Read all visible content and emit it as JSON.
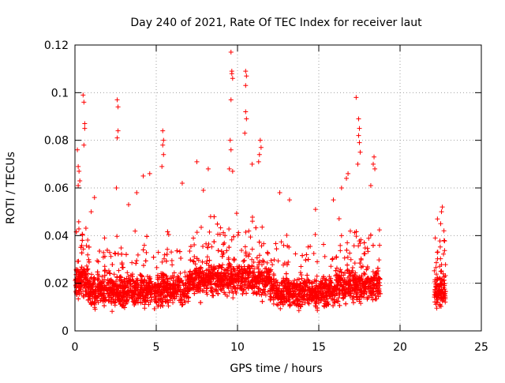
{
  "chart_data": {
    "type": "scatter",
    "title": "Day 240 of 2021, Rate Of TEC Index for receiver laut",
    "xlabel": "GPS time / hours",
    "ylabel": "ROTI / TECUs",
    "xlim": [
      0,
      25
    ],
    "ylim": [
      0,
      0.12
    ],
    "x_ticks": [
      "0",
      "5",
      "10",
      "15",
      "20",
      "25"
    ],
    "y_ticks": [
      "0",
      "0.02",
      "0.04",
      "0.06",
      "0.08",
      "0.1",
      "0.12"
    ],
    "grid": true,
    "marker": "plus",
    "color": "#ff0000",
    "x_tick_values": [
      0,
      5,
      10,
      15,
      20,
      25
    ],
    "y_tick_values": [
      0,
      0.02,
      0.04,
      0.06,
      0.08,
      0.1,
      0.12
    ],
    "coverage_ranges_hours": [
      [
        0.0,
        18.8
      ],
      [
        22.1,
        22.8
      ]
    ],
    "series": [
      {
        "points": [
          [
            0.5,
            0.099
          ],
          [
            0.55,
            0.096
          ],
          [
            0.6,
            0.087
          ],
          [
            0.6,
            0.085
          ],
          [
            0.55,
            0.078
          ],
          [
            0.15,
            0.076
          ],
          [
            0.2,
            0.069
          ],
          [
            0.25,
            0.067
          ],
          [
            0.3,
            0.063
          ],
          [
            0.2,
            0.061
          ],
          [
            2.6,
            0.097
          ],
          [
            2.65,
            0.094
          ],
          [
            2.65,
            0.084
          ],
          [
            2.6,
            0.081
          ],
          [
            2.55,
            0.06
          ],
          [
            5.4,
            0.084
          ],
          [
            5.45,
            0.08
          ],
          [
            5.4,
            0.078
          ],
          [
            5.45,
            0.074
          ],
          [
            5.35,
            0.069
          ],
          [
            4.6,
            0.066
          ],
          [
            4.2,
            0.065
          ],
          [
            7.5,
            0.071
          ],
          [
            8.2,
            0.068
          ],
          [
            9.6,
            0.117
          ],
          [
            9.65,
            0.109
          ],
          [
            9.65,
            0.108
          ],
          [
            9.7,
            0.106
          ],
          [
            9.6,
            0.097
          ],
          [
            9.55,
            0.08
          ],
          [
            9.6,
            0.076
          ],
          [
            9.5,
            0.068
          ],
          [
            9.7,
            0.067
          ],
          [
            10.5,
            0.109
          ],
          [
            10.55,
            0.107
          ],
          [
            10.5,
            0.103
          ],
          [
            10.5,
            0.092
          ],
          [
            10.55,
            0.089
          ],
          [
            10.45,
            0.083
          ],
          [
            10.9,
            0.07
          ],
          [
            11.4,
            0.08
          ],
          [
            11.45,
            0.077
          ],
          [
            11.35,
            0.074
          ],
          [
            11.3,
            0.071
          ],
          [
            17.3,
            0.098
          ],
          [
            17.45,
            0.089
          ],
          [
            17.5,
            0.085
          ],
          [
            17.45,
            0.082
          ],
          [
            17.5,
            0.079
          ],
          [
            17.55,
            0.075
          ],
          [
            17.4,
            0.07
          ],
          [
            16.8,
            0.066
          ],
          [
            16.7,
            0.064
          ],
          [
            18.4,
            0.073
          ],
          [
            18.35,
            0.07
          ],
          [
            18.45,
            0.068
          ],
          [
            16.4,
            0.06
          ],
          [
            18.2,
            0.061
          ],
          [
            22.6,
            0.052
          ],
          [
            22.55,
            0.05
          ],
          [
            22.3,
            0.047
          ],
          [
            22.7,
            0.042
          ],
          [
            22.5,
            0.045
          ],
          [
            3.8,
            0.058
          ],
          [
            6.6,
            0.062
          ],
          [
            12.6,
            0.058
          ],
          [
            13.2,
            0.055
          ],
          [
            14.8,
            0.051
          ],
          [
            15.9,
            0.055
          ],
          [
            1.2,
            0.056
          ],
          [
            1.0,
            0.05
          ],
          [
            3.3,
            0.053
          ],
          [
            7.9,
            0.059
          ]
        ]
      }
    ]
  }
}
